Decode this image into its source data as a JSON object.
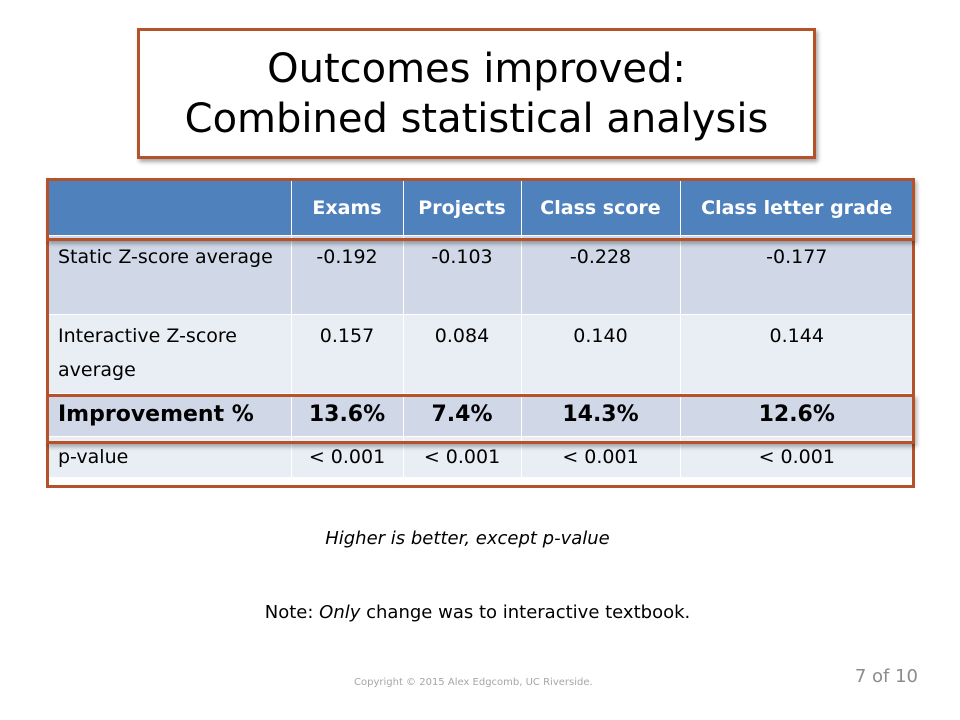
{
  "title": {
    "line1": "Outcomes improved:",
    "line2": "Combined statistical analysis"
  },
  "table": {
    "headers": [
      "",
      "Exams",
      "Projects",
      "Class score",
      "Class letter grade"
    ],
    "rows": [
      {
        "label": "Static Z-score average",
        "values": [
          "-0.192",
          "-0.103",
          "-0.228",
          "-0.177"
        ]
      },
      {
        "label": "Interactive Z-score average",
        "values": [
          "0.157",
          "0.084",
          "0.140",
          "0.144"
        ]
      },
      {
        "label": "Improvement %",
        "values": [
          "13.6%",
          "7.4%",
          "14.3%",
          "12.6%"
        ]
      },
      {
        "label": "p-value",
        "values": [
          "< 0.001",
          "< 0.001",
          "< 0.001",
          "< 0.001"
        ]
      }
    ]
  },
  "notes": {
    "higher_is_better": "Higher is better, except p-value",
    "note_prefix": "Note: ",
    "note_emphasis": "Only",
    "note_suffix": " change was to interactive textbook."
  },
  "footer": {
    "copyright": "Copyright © 2015 Alex Edgcomb, UC Riverside.",
    "page": "7 of 10"
  },
  "colors": {
    "header_blue": "#4f81bd",
    "row_dark": "#d0d8e8",
    "row_light": "#e9edf4",
    "highlight_border": "#b5522a"
  }
}
